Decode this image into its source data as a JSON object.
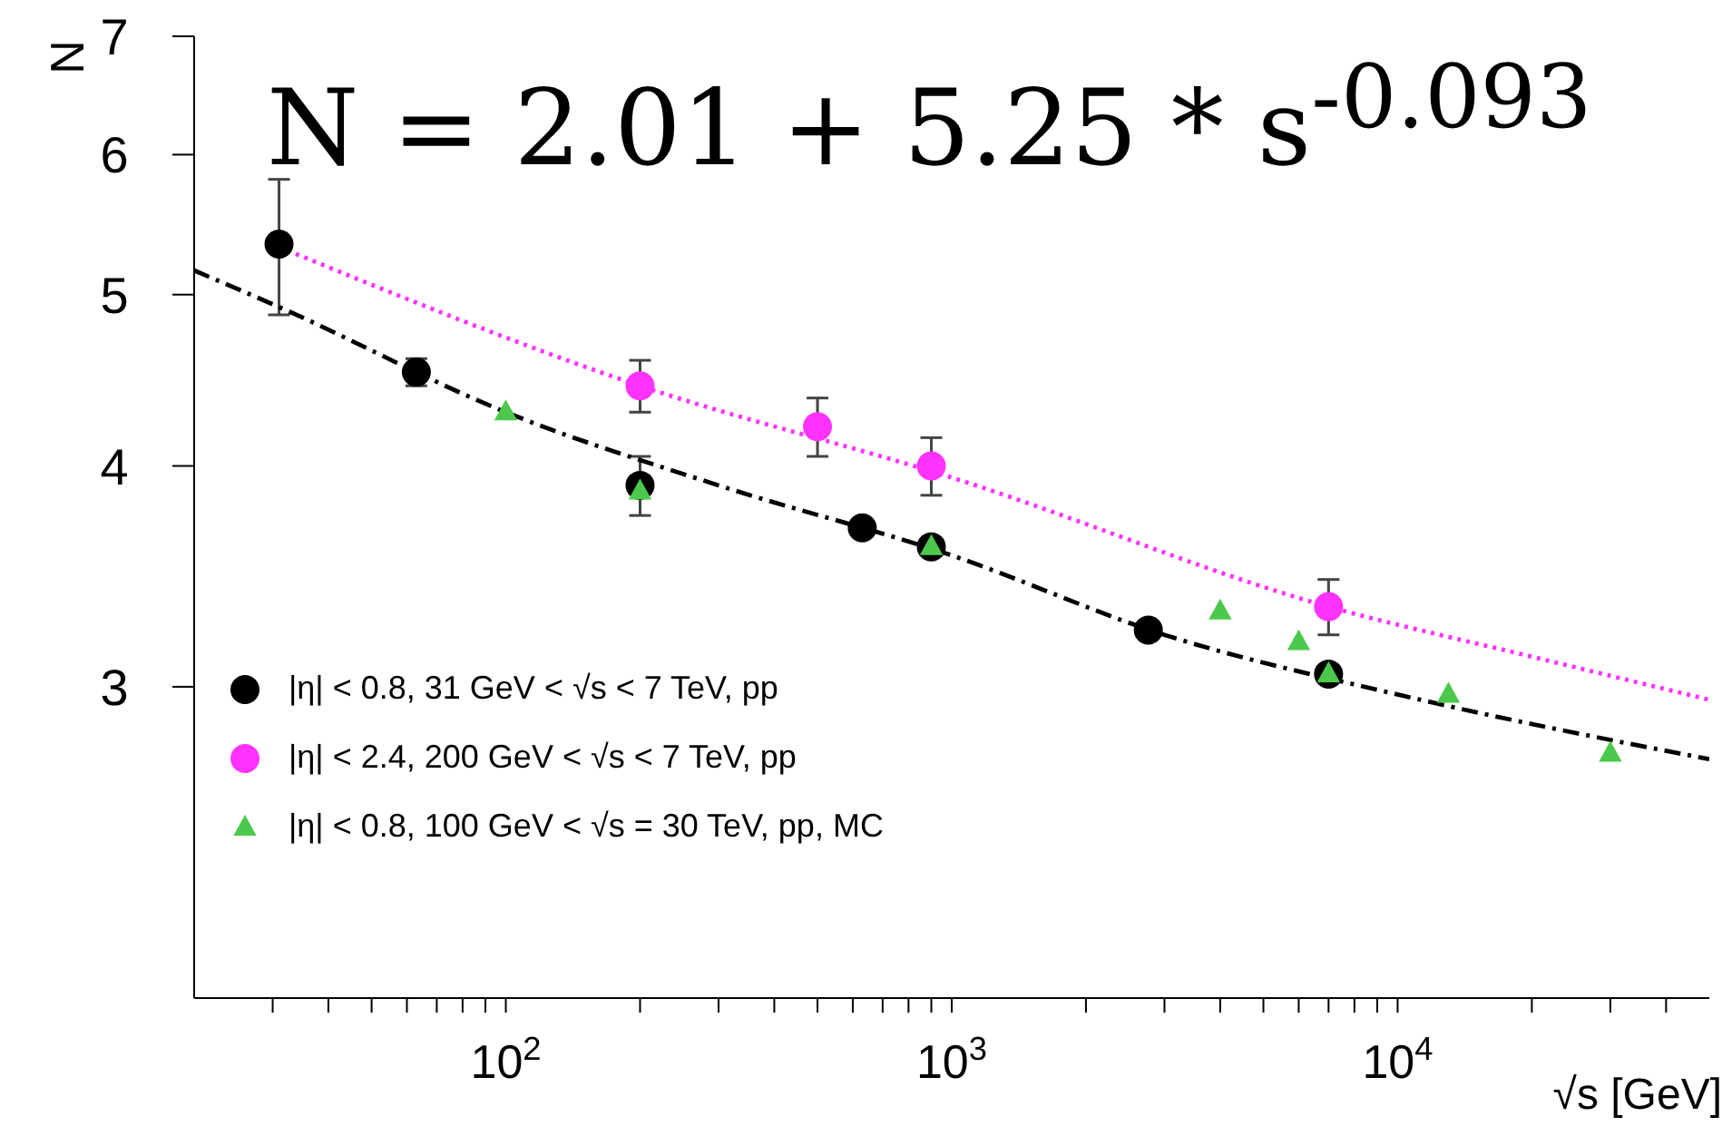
{
  "chart_data": {
    "type": "scatter",
    "xlabel": "√s [GeV]",
    "ylabel": "N",
    "annotations": [
      "N = 2.01 + 5.25 * s$^{-0.093}$"
    ],
    "log": "xy",
    "xlim": [
      20,
      50000
    ],
    "ylim": [
      2,
      7
    ],
    "xticks": [
      {
        "value": 30,
        "label": null
      },
      {
        "value": 40,
        "label": null
      },
      {
        "value": 50,
        "label": null
      },
      {
        "value": 60,
        "label": null
      },
      {
        "value": 70,
        "label": null
      },
      {
        "value": 80,
        "label": null
      },
      {
        "value": 90,
        "label": null
      },
      {
        "value": 100,
        "label": "10$^{2}$"
      },
      {
        "value": 200,
        "label": null
      },
      {
        "value": 300,
        "label": null
      },
      {
        "value": 400,
        "label": null
      },
      {
        "value": 500,
        "label": null
      },
      {
        "value": 600,
        "label": null
      },
      {
        "value": 700,
        "label": null
      },
      {
        "value": 800,
        "label": null
      },
      {
        "value": 900,
        "label": null
      },
      {
        "value": 1000,
        "label": "10$^{3}$"
      },
      {
        "value": 2000,
        "label": null
      },
      {
        "value": 3000,
        "label": null
      },
      {
        "value": 4000,
        "label": null
      },
      {
        "value": 5000,
        "label": null
      },
      {
        "value": 6000,
        "label": null
      },
      {
        "value": 7000,
        "label": null
      },
      {
        "value": 8000,
        "label": null
      },
      {
        "value": 9000,
        "label": null
      },
      {
        "value": 10000,
        "label": "10$^{4}$"
      },
      {
        "value": 20000,
        "label": null
      },
      {
        "value": 30000,
        "label": null
      },
      {
        "value": 40000,
        "label": null
      }
    ],
    "yticks": [
      3,
      4,
      5,
      6,
      7
    ],
    "grid": false,
    "legend": "bottom left",
    "series": [
      {
        "name": "|η| < 0.8, 31 GeV < √s < 7 TeV, pp",
        "marker": "circle",
        "color": "#000000",
        "x": [
          31,
          63,
          200,
          630,
          900,
          2760,
          7000
        ],
        "values": [
          5.34,
          4.52,
          3.9,
          3.69,
          3.6,
          3.23,
          3.05
        ],
        "errors": [
          0.47,
          0.08,
          0.15,
          null,
          null,
          null,
          null
        ]
      },
      {
        "name": "|η| < 2.4, 200 GeV < √s < 7 TeV, pp",
        "marker": "circle",
        "color": "#ff33ff",
        "x": [
          200,
          500,
          900,
          7000
        ],
        "values": [
          4.44,
          4.21,
          4.0,
          3.33
        ],
        "errors": [
          0.15,
          0.16,
          0.15,
          0.12
        ]
      },
      {
        "name": "|η| < 0.8, 100 GeV < √s = 30 TeV, pp, MC",
        "marker": "triangle",
        "color": "#4cc94c",
        "x": [
          100,
          200,
          900,
          4000,
          6000,
          7000,
          13000,
          30000
        ],
        "values": [
          4.29,
          3.87,
          3.6,
          3.31,
          3.18,
          3.05,
          2.97,
          2.75
        ]
      },
      {
        "type": "line",
        "line_style": "dashed",
        "marker": "none",
        "color": "#000000",
        "x": [
          20,
          31,
          100,
          300,
          1000,
          3000,
          10000,
          50000
        ],
        "values": [
          5.16,
          4.92,
          4.29,
          3.9,
          3.56,
          3.21,
          2.97,
          2.73
        ]
      },
      {
        "type": "line",
        "line_style": "dotted",
        "marker": "none",
        "color": "#ff33ff",
        "x": [
          31,
          200,
          1000,
          7000,
          20000,
          50000
        ],
        "values": [
          5.32,
          4.44,
          3.94,
          3.33,
          3.12,
          2.95
        ]
      }
    ]
  }
}
